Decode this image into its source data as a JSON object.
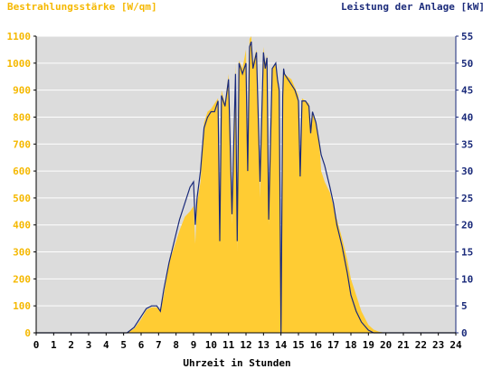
{
  "chart_data": {
    "type": "area",
    "title_left": "Bestrahlungsstärke [W/qm]",
    "title_right": "Leistung der Anlage [kW]",
    "xlabel": "Uhrzeit in Stunden",
    "x_ticks": [
      "0",
      "1",
      "2",
      "3",
      "4",
      "5",
      "6",
      "7",
      "8",
      "9",
      "10",
      "11",
      "12",
      "13",
      "14",
      "15",
      "16",
      "17",
      "18",
      "19",
      "20",
      "21",
      "22",
      "23",
      "24"
    ],
    "xlim": [
      0,
      24
    ],
    "ylim_left": [
      0,
      1100
    ],
    "ylim_right": [
      0,
      55
    ],
    "y_ticks_left": [
      "0",
      "100",
      "200",
      "300",
      "400",
      "500",
      "600",
      "700",
      "800",
      "900",
      "1000",
      "1100"
    ],
    "y_ticks_right": [
      "0",
      "5",
      "10",
      "15",
      "20",
      "25",
      "30",
      "35",
      "40",
      "45",
      "50",
      "55"
    ],
    "grid": "horizontal",
    "colors": {
      "plot_background": "#dcdcdc",
      "irradiance_fill": "#ffcc33",
      "power_line": "#1a2a7a",
      "left_label": "#f5b800",
      "right_label": "#1a2a7a",
      "grid": "#ffffff"
    },
    "series": [
      {
        "kind": "irradiance",
        "axis": "left",
        "x": [
          0,
          5.2,
          5.6,
          6.0,
          6.3,
          6.6,
          6.9,
          7.1,
          7.3,
          7.6,
          7.9,
          8.2,
          8.5,
          8.8,
          9.0,
          9.1,
          9.2,
          9.4,
          9.6,
          9.8,
          10.0,
          10.2,
          10.4,
          10.5,
          10.6,
          10.8,
          11.0,
          11.2,
          11.4,
          11.5,
          11.6,
          11.8,
          12.0,
          12.1,
          12.2,
          12.3,
          12.4,
          12.6,
          12.8,
          13.0,
          13.1,
          13.2,
          13.3,
          13.5,
          13.7,
          13.8,
          13.9,
          14.0,
          14.1,
          14.15,
          14.2,
          14.4,
          14.6,
          14.8,
          15.0,
          15.1,
          15.2,
          15.4,
          15.6,
          15.7,
          15.8,
          16.0,
          16.2,
          16.3,
          16.5,
          16.8,
          17.0,
          17.2,
          17.5,
          17.8,
          18.0,
          18.3,
          18.6,
          19.0,
          19.3,
          19.6,
          20.0,
          24
        ],
        "values": [
          0,
          0,
          15,
          50,
          85,
          95,
          95,
          80,
          140,
          260,
          320,
          380,
          430,
          450,
          470,
          330,
          480,
          560,
          780,
          820,
          830,
          850,
          870,
          380,
          900,
          850,
          960,
          400,
          1000,
          300,
          1010,
          980,
          1050,
          600,
          1090,
          1100,
          1000,
          1050,
          500,
          1060,
          1000,
          1030,
          400,
          980,
          1000,
          950,
          900,
          0,
          900,
          980,
          960,
          950,
          940,
          910,
          880,
          600,
          870,
          860,
          850,
          750,
          820,
          780,
          700,
          600,
          560,
          520,
          470,
          420,
          350,
          270,
          200,
          140,
          80,
          30,
          12,
          4,
          0,
          0
        ]
      },
      {
        "kind": "power",
        "axis": "right",
        "x": [
          0,
          5.2,
          5.6,
          6.0,
          6.3,
          6.6,
          6.9,
          7.1,
          7.3,
          7.6,
          7.9,
          8.2,
          8.5,
          8.8,
          9.0,
          9.1,
          9.2,
          9.4,
          9.6,
          9.8,
          10.0,
          10.2,
          10.4,
          10.5,
          10.6,
          10.8,
          11.0,
          11.2,
          11.4,
          11.5,
          11.6,
          11.8,
          12.0,
          12.1,
          12.2,
          12.3,
          12.4,
          12.6,
          12.8,
          13.0,
          13.1,
          13.2,
          13.3,
          13.5,
          13.7,
          13.8,
          13.9,
          14.0,
          14.1,
          14.15,
          14.2,
          14.4,
          14.6,
          14.8,
          15.0,
          15.1,
          15.2,
          15.4,
          15.6,
          15.7,
          15.8,
          16.0,
          16.2,
          16.3,
          16.5,
          16.8,
          17.0,
          17.2,
          17.5,
          17.8,
          18.0,
          18.3,
          18.6,
          19.0,
          19.3,
          19.6,
          20.0,
          24
        ],
        "values": [
          0,
          0,
          1,
          3,
          4.5,
          5,
          5,
          4,
          8,
          13,
          17,
          21,
          24,
          27,
          28,
          20,
          25,
          30,
          38,
          40,
          41,
          41,
          43,
          17,
          44,
          42,
          47,
          22,
          48,
          17,
          50,
          48,
          50,
          30,
          53,
          54,
          49,
          52,
          28,
          52,
          49,
          51,
          21,
          49,
          50,
          47,
          45,
          0,
          44,
          49,
          48,
          47,
          46,
          45,
          43,
          29,
          43,
          43,
          42,
          37,
          41,
          39,
          35,
          33,
          31,
          27,
          24,
          20,
          16,
          11,
          7,
          4,
          2,
          0.5,
          0,
          0,
          0,
          0
        ]
      }
    ]
  }
}
